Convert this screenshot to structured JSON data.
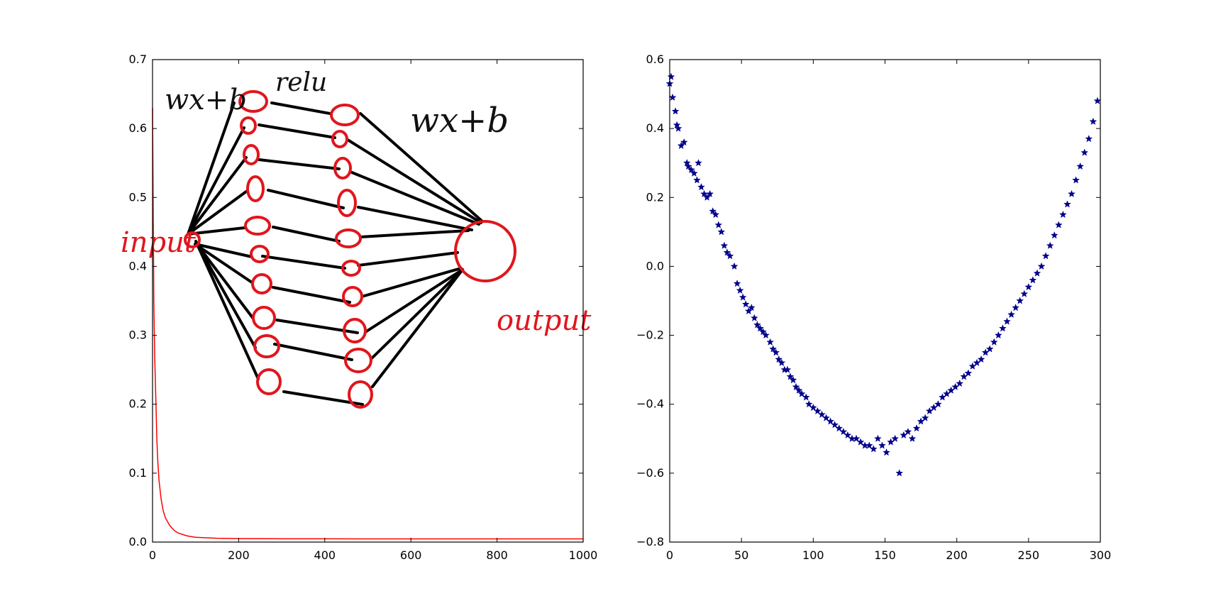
{
  "chart_data": [
    {
      "type": "line",
      "title": "",
      "xlabel": "",
      "ylabel": "",
      "xlim": [
        0,
        1000
      ],
      "ylim": [
        0.0,
        0.7
      ],
      "xticks": [
        "0",
        "200",
        "400",
        "600",
        "800",
        "1000"
      ],
      "yticks": [
        "0.0",
        "0.1",
        "0.2",
        "0.3",
        "0.4",
        "0.5",
        "0.6",
        "0.7"
      ],
      "grid": false,
      "series": [
        {
          "color": "#ff0000",
          "x": [
            0,
            1,
            2,
            3,
            5,
            8,
            10,
            12,
            15,
            20,
            25,
            30,
            40,
            50,
            60,
            80,
            100,
            150,
            200,
            300,
            400,
            600,
            800,
            1000
          ],
          "y": [
            0.63,
            0.54,
            0.44,
            0.35,
            0.27,
            0.2,
            0.15,
            0.12,
            0.09,
            0.062,
            0.045,
            0.035,
            0.024,
            0.017,
            0.013,
            0.009,
            0.007,
            0.0055,
            0.005,
            0.0048,
            0.0047,
            0.0046,
            0.0046,
            0.0046
          ]
        }
      ],
      "annotations": {
        "labels": [
          "wx+b",
          "relu",
          "wx+b",
          "input",
          "output"
        ],
        "colors": {
          "ink": "#000000",
          "red": "#e0161c"
        }
      }
    },
    {
      "type": "scatter",
      "title": "",
      "xlabel": "",
      "ylabel": "",
      "xlim": [
        0,
        300
      ],
      "ylim": [
        -0.8,
        0.6
      ],
      "xticks": [
        "0",
        "50",
        "100",
        "150",
        "200",
        "250",
        "300"
      ],
      "yticks": [
        "−0.8",
        "−0.6",
        "−0.4",
        "−0.2",
        "0.0",
        "0.2",
        "0.4",
        "0.6"
      ],
      "grid": false,
      "marker": "star",
      "series": [
        {
          "color": "#00008b",
          "x": [
            0,
            1,
            2,
            4,
            5,
            6,
            8,
            10,
            12,
            13,
            15,
            17,
            19,
            20,
            22,
            24,
            26,
            28,
            30,
            32,
            34,
            36,
            38,
            40,
            42,
            45,
            47,
            49,
            51,
            53,
            55,
            57,
            59,
            61,
            63,
            65,
            67,
            70,
            72,
            74,
            76,
            78,
            80,
            82,
            84,
            86,
            88,
            90,
            92,
            95,
            97,
            100,
            103,
            106,
            109,
            112,
            115,
            118,
            121,
            124,
            127,
            130,
            133,
            136,
            139,
            142,
            145,
            148,
            151,
            154,
            157,
            160,
            163,
            166,
            169,
            172,
            175,
            178,
            181,
            184,
            187,
            190,
            193,
            196,
            199,
            202,
            205,
            208,
            211,
            214,
            217,
            220,
            223,
            226,
            229,
            232,
            235,
            238,
            241,
            244,
            247,
            250,
            253,
            256,
            259,
            262,
            265,
            268,
            271,
            274,
            277,
            280,
            283,
            286,
            289,
            292,
            295,
            298
          ],
          "y": [
            0.53,
            0.55,
            0.49,
            0.45,
            0.41,
            0.4,
            0.35,
            0.36,
            0.3,
            0.29,
            0.28,
            0.27,
            0.25,
            0.3,
            0.23,
            0.21,
            0.2,
            0.21,
            0.16,
            0.15,
            0.12,
            0.1,
            0.06,
            0.04,
            0.03,
            0.0,
            -0.05,
            -0.07,
            -0.09,
            -0.11,
            -0.13,
            -0.12,
            -0.15,
            -0.17,
            -0.18,
            -0.19,
            -0.2,
            -0.22,
            -0.24,
            -0.25,
            -0.27,
            -0.28,
            -0.3,
            -0.3,
            -0.32,
            -0.33,
            -0.35,
            -0.36,
            -0.37,
            -0.38,
            -0.4,
            -0.41,
            -0.42,
            -0.43,
            -0.44,
            -0.45,
            -0.46,
            -0.47,
            -0.48,
            -0.49,
            -0.5,
            -0.5,
            -0.51,
            -0.52,
            -0.52,
            -0.53,
            -0.5,
            -0.52,
            -0.54,
            -0.51,
            -0.5,
            -0.6,
            -0.49,
            -0.48,
            -0.5,
            -0.47,
            -0.45,
            -0.44,
            -0.42,
            -0.41,
            -0.4,
            -0.38,
            -0.37,
            -0.36,
            -0.35,
            -0.34,
            -0.32,
            -0.31,
            -0.29,
            -0.28,
            -0.27,
            -0.25,
            -0.24,
            -0.22,
            -0.2,
            -0.18,
            -0.16,
            -0.14,
            -0.12,
            -0.1,
            -0.08,
            -0.06,
            -0.04,
            -0.02,
            0.0,
            0.03,
            0.06,
            0.09,
            0.12,
            0.15,
            0.18,
            0.21,
            0.25,
            0.29,
            0.33,
            0.37,
            0.42,
            0.48
          ]
        }
      ]
    }
  ]
}
